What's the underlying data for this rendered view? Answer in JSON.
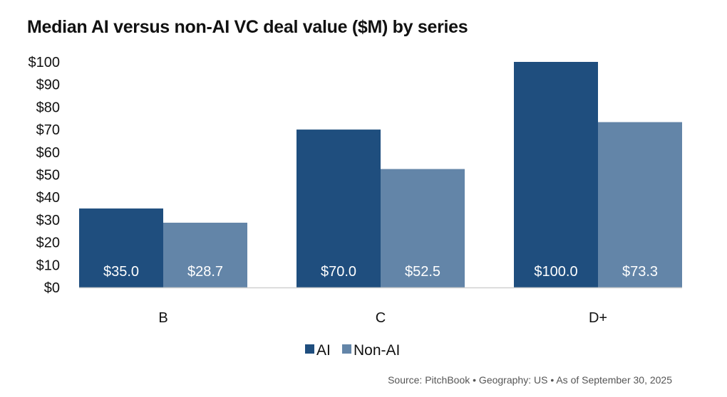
{
  "chart_data": {
    "type": "bar",
    "title": "Median AI versus non-AI VC deal value ($M) by series",
    "xlabel": "",
    "ylabel": "",
    "categories": [
      "B",
      "C",
      "D+"
    ],
    "series": [
      {
        "name": "AI",
        "color": "#1f4e7e",
        "values": [
          35.0,
          70.0,
          100.0
        ],
        "labels": [
          "$35.0",
          "$70.0",
          "$100.0"
        ]
      },
      {
        "name": "Non-AI",
        "color": "#6385a8",
        "values": [
          28.7,
          52.5,
          73.3
        ],
        "labels": [
          "$28.7",
          "$52.5",
          "$73.3"
        ]
      }
    ],
    "ylim": [
      0,
      100
    ],
    "yticks": [
      0,
      10,
      20,
      30,
      40,
      50,
      60,
      70,
      80,
      90,
      100
    ],
    "ytick_labels": [
      "$0",
      "$10",
      "$20",
      "$30",
      "$40",
      "$50",
      "$60",
      "$70",
      "$80",
      "$90",
      "$100"
    ],
    "grid": false,
    "legend": "bottom-center",
    "source": "Source: PitchBook  •  Geography: US  •  As of September 30, 2025"
  }
}
